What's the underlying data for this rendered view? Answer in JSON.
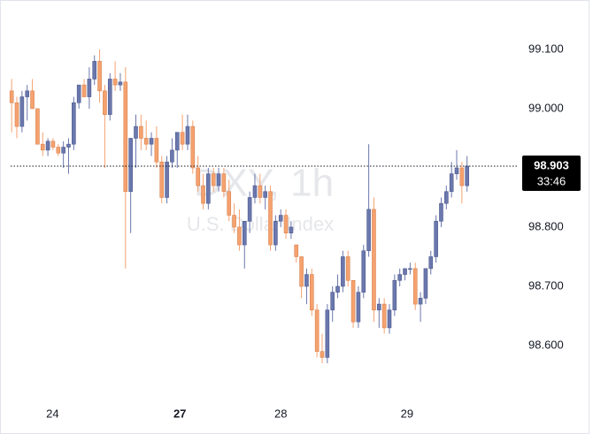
{
  "chart_data": {
    "type": "candlestick",
    "watermark_title": "DXY, 1h",
    "watermark_subtitle": "U.S. Dollar Index",
    "up_color": "#6b78ad",
    "down_color": "#f5a26f",
    "open": [
      99.03,
      99.01,
      98.97,
      99.02,
      99.03,
      99.0,
      98.94,
      98.93,
      98.945,
      98.935,
      98.925,
      98.935,
      98.94,
      99.01,
      99.04,
      99.02,
      99.05,
      99.08,
      99.03,
      98.99,
      99.05,
      99.04,
      99.045,
      98.86,
      98.95,
      98.97,
      98.95,
      98.94,
      98.95,
      98.91,
      98.85,
      98.91,
      98.93,
      98.96,
      98.94,
      98.97,
      98.9,
      98.87,
      98.84,
      98.89,
      98.87,
      98.89,
      98.86,
      98.82,
      98.8,
      98.77,
      98.81,
      98.85,
      98.87,
      98.85,
      98.86,
      98.77,
      98.81,
      98.82,
      98.79,
      98.77,
      98.75,
      98.7,
      98.72,
      98.66,
      98.59,
      98.58,
      98.66,
      98.69,
      98.7,
      98.75,
      98.71,
      98.64,
      98.69,
      98.76,
      98.83,
      98.66,
      98.67,
      98.63,
      98.66,
      98.71,
      98.72,
      98.73,
      98.73,
      98.67,
      98.68,
      98.73,
      98.75,
      98.81,
      98.84,
      98.86,
      98.89,
      98.9,
      98.87
    ],
    "high": [
      99.05,
      99.02,
      99.03,
      99.04,
      99.05,
      99.0,
      98.96,
      98.95,
      98.95,
      98.94,
      98.945,
      98.95,
      99.02,
      99.04,
      99.05,
      99.07,
      99.09,
      99.1,
      99.04,
      99.06,
      99.08,
      99.06,
      99.07,
      98.95,
      98.99,
      98.99,
      98.98,
      98.96,
      98.97,
      98.92,
      98.92,
      98.95,
      98.96,
      98.99,
      98.99,
      98.98,
      98.92,
      98.89,
      98.9,
      98.9,
      98.9,
      98.9,
      98.88,
      98.84,
      98.83,
      98.81,
      98.86,
      98.89,
      98.89,
      98.87,
      98.87,
      98.82,
      98.83,
      98.83,
      98.81,
      98.77,
      98.75,
      98.73,
      98.73,
      98.67,
      98.62,
      98.67,
      98.7,
      98.72,
      98.76,
      98.76,
      98.71,
      98.7,
      98.77,
      98.94,
      98.85,
      98.68,
      98.68,
      98.67,
      98.72,
      98.73,
      98.73,
      98.74,
      98.74,
      98.69,
      98.73,
      98.76,
      98.82,
      98.85,
      98.87,
      98.91,
      98.93,
      98.91,
      98.92
    ],
    "low": [
      98.96,
      98.95,
      98.96,
      98.98,
      99.0,
      98.94,
      98.92,
      98.92,
      98.93,
      98.92,
      98.9,
      98.89,
      98.93,
      99.0,
      99.02,
      99.0,
      99.04,
      99.01,
      98.9,
      98.98,
      99.03,
      99.03,
      98.73,
      98.79,
      98.9,
      98.93,
      98.93,
      98.92,
      98.9,
      98.84,
      98.84,
      98.9,
      98.9,
      98.93,
      98.93,
      98.89,
      98.86,
      98.83,
      98.83,
      98.86,
      98.86,
      98.85,
      98.81,
      98.79,
      98.76,
      98.73,
      98.79,
      98.84,
      98.84,
      98.83,
      98.76,
      98.76,
      98.8,
      98.78,
      98.78,
      98.74,
      98.68,
      98.67,
      98.65,
      98.58,
      98.57,
      98.57,
      98.64,
      98.68,
      98.69,
      98.7,
      98.63,
      98.63,
      98.68,
      98.75,
      98.64,
      98.63,
      98.62,
      98.62,
      98.65,
      98.7,
      98.71,
      98.72,
      98.66,
      98.64,
      98.67,
      98.72,
      98.74,
      98.8,
      98.83,
      98.85,
      98.88,
      98.84,
      98.86
    ],
    "close": [
      99.01,
      98.97,
      99.02,
      99.03,
      99.0,
      98.94,
      98.93,
      98.945,
      98.935,
      98.925,
      98.935,
      98.94,
      99.01,
      99.04,
      99.02,
      99.05,
      99.08,
      99.03,
      98.99,
      99.05,
      99.04,
      99.045,
      98.86,
      98.95,
      98.97,
      98.95,
      98.94,
      98.95,
      98.91,
      98.85,
      98.91,
      98.93,
      98.96,
      98.94,
      98.97,
      98.9,
      98.87,
      98.84,
      98.89,
      98.87,
      98.89,
      98.86,
      98.82,
      98.8,
      98.77,
      98.81,
      98.85,
      98.87,
      98.85,
      98.86,
      98.77,
      98.81,
      98.82,
      98.79,
      98.8,
      98.75,
      98.7,
      98.72,
      98.66,
      98.59,
      98.58,
      98.66,
      98.69,
      98.7,
      98.75,
      98.71,
      98.64,
      98.69,
      98.76,
      98.83,
      98.66,
      98.67,
      98.63,
      98.66,
      98.71,
      98.72,
      98.73,
      98.73,
      98.67,
      98.68,
      98.73,
      98.75,
      98.81,
      98.84,
      98.86,
      98.89,
      98.9,
      98.87,
      98.903
    ],
    "xlim": [
      -0.2,
      97.8
    ],
    "xticks": [
      {
        "value": 7.9,
        "label": "24"
      },
      {
        "value": 32.5,
        "label": "27",
        "bold": true
      },
      {
        "value": 52,
        "label": "28"
      },
      {
        "value": 76.4,
        "label": "29"
      }
    ],
    "ylim": [
      98.5045,
      99.176
    ],
    "yticks": [
      {
        "value": 98.6,
        "label": "98.600"
      },
      {
        "value": 98.7,
        "label": "98.700"
      },
      {
        "value": 98.8,
        "label": "98.800"
      },
      {
        "value": 99.0,
        "label": "99.000"
      },
      {
        "value": 99.1,
        "label": "99.100"
      }
    ],
    "last_price": 98.903,
    "countdown": "33:46"
  }
}
